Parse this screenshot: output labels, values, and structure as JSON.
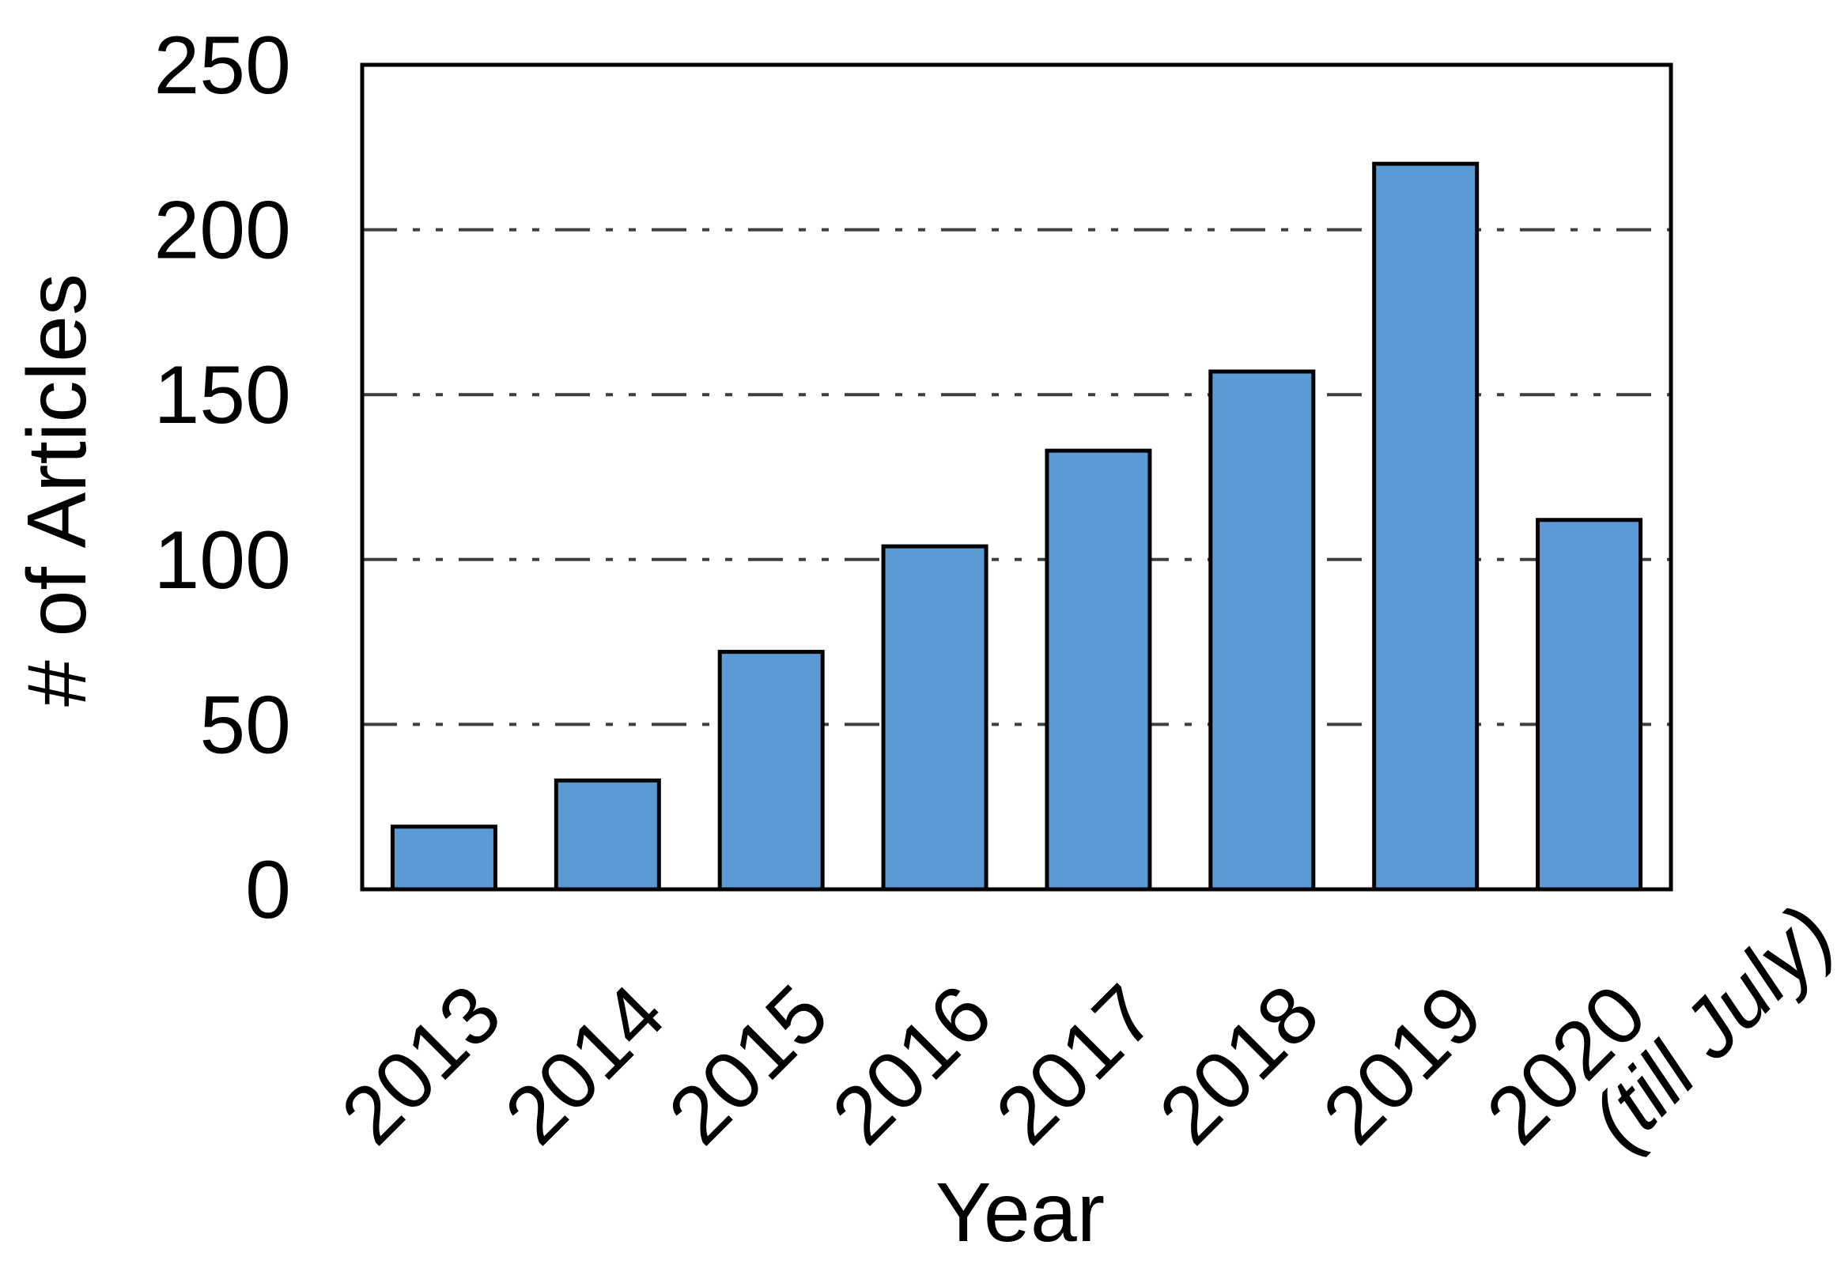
{
  "chart_data": {
    "type": "bar",
    "title": "",
    "xlabel": "Year",
    "ylabel": "# of Articles",
    "categories": [
      "2013",
      "2014",
      "2015",
      "2016",
      "2017",
      "2018",
      "2019",
      "2020 (till July)"
    ],
    "values": [
      19,
      33,
      72,
      104,
      133,
      157,
      220,
      112
    ],
    "tick_labels": [
      "2013",
      "2014",
      "2015",
      "2016",
      "2017",
      "2018",
      "2019",
      "2020"
    ],
    "last_tick_note": "(till July)",
    "yticks": [
      "0",
      "50",
      "100",
      "150",
      "200",
      "250"
    ],
    "ytick_values": [
      0,
      50,
      100,
      150,
      200,
      250
    ],
    "grid_values": [
      50,
      100,
      150,
      200
    ],
    "ylim": [
      0,
      250
    ],
    "grid": true,
    "legend": false,
    "tick_rotation_deg": -45,
    "colors": {
      "bar_fill": "#5B9BD5",
      "bar_border": "#000000",
      "gridline": "#3F3F3F",
      "frame": "#000000",
      "text": "#000000"
    }
  }
}
